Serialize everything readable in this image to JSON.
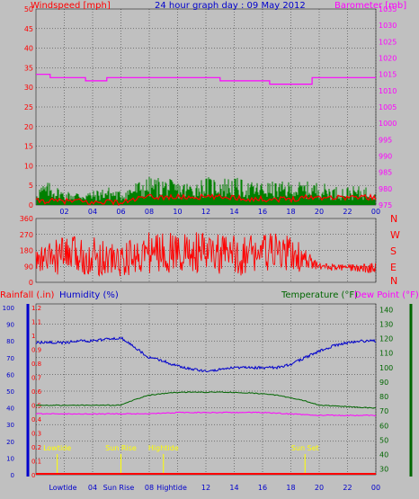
{
  "colors": {
    "bg": "#c0c0c0",
    "wind": "#ff0000",
    "gust_fill": "#008000",
    "baro": "#ff00ff",
    "humidity": "#0000cc",
    "temperature": "#006600",
    "dewpoint": "#ff00ff",
    "rain": "#ff0000",
    "event": "#ffff00",
    "axis_blue": "#0000cc",
    "axis_green": "#006600"
  },
  "chart_data": [
    {
      "type": "line",
      "title": "24 hour graph day : 09 May 2012",
      "y_left_label": "Windspeed [mph]",
      "y_right_label": "Barometer [mb]",
      "y_left_ticks": [
        "0",
        "5",
        "10",
        "15",
        "20",
        "25",
        "30",
        "35",
        "40",
        "45",
        "50"
      ],
      "y_right_ticks": [
        "975",
        "980",
        "985",
        "990",
        "995",
        "1000",
        "1005",
        "1010",
        "1015",
        "1020",
        "1025",
        "1030",
        "1035"
      ],
      "ylim_left": [
        0,
        50
      ],
      "ylim_right": [
        975,
        1035
      ],
      "x_ticks": [
        "02",
        "04",
        "06",
        "08",
        "10",
        "12",
        "14",
        "16",
        "18",
        "20",
        "22",
        "00"
      ],
      "grid": true,
      "series": [
        {
          "name": "Barometer",
          "axis": "right",
          "x": [
            0,
            1,
            1,
            3.5,
            3.5,
            5,
            5,
            10.5,
            10.5,
            13,
            13,
            16.5,
            16.5,
            19.5,
            19.5,
            24
          ],
          "values": [
            1015,
            1015,
            1014,
            1014,
            1013,
            1013,
            1014,
            1014,
            1014,
            1014,
            1013,
            1013,
            1012,
            1012,
            1014,
            1014
          ]
        },
        {
          "name": "Wind",
          "axis": "left",
          "hours": [
            0,
            1,
            2,
            3,
            4,
            5,
            6,
            7,
            8,
            9,
            10,
            11,
            12,
            13,
            14,
            15,
            16,
            17,
            18,
            19,
            20,
            21,
            22,
            23,
            24
          ],
          "avg": [
            1,
            1,
            1,
            1,
            0.5,
            1,
            0.5,
            1.5,
            2,
            2,
            2,
            2,
            2,
            2,
            2,
            1.5,
            1.5,
            1.5,
            1.5,
            2,
            2,
            2,
            2,
            2,
            2
          ],
          "gust": [
            4,
            5,
            3,
            3,
            3,
            4,
            3,
            5,
            6,
            6,
            5,
            5,
            6,
            6,
            6,
            5,
            5,
            5,
            5,
            5,
            5,
            4,
            4,
            4,
            4
          ]
        }
      ]
    },
    {
      "type": "line",
      "title": "",
      "y_left_ticks": [
        "0",
        "90",
        "180",
        "270",
        "360"
      ],
      "y_right_labels": [
        "N",
        "W",
        "S",
        "E",
        "N"
      ],
      "ylim": [
        0,
        360
      ],
      "x_ticks": [
        "02",
        "04",
        "06",
        "08",
        "10",
        "12",
        "14",
        "16",
        "18",
        "20",
        "22",
        "00"
      ],
      "series": [
        {
          "name": "Wind Direction",
          "hours": [
            0,
            2,
            4,
            6,
            8,
            10,
            12,
            14,
            16,
            18,
            20,
            22,
            24
          ],
          "center": [
            120,
            150,
            150,
            120,
            170,
            170,
            160,
            150,
            170,
            160,
            90,
            80,
            80
          ],
          "spread": [
            70,
            110,
            110,
            90,
            120,
            120,
            120,
            120,
            110,
            110,
            20,
            20,
            30
          ]
        }
      ]
    },
    {
      "type": "line",
      "title": "",
      "y_left1_label": "Rainfall (.in)",
      "y_left2_label": "Humidity (%)",
      "y_right1_label": "Temperature (°F)",
      "y_right2_label": "Dew Point (°F)",
      "y_left1_ticks": [
        "0",
        "0.1",
        "0.2",
        "0.3",
        "0.4",
        "0.5",
        "0.6",
        "0.7",
        "0.8",
        "0.9",
        "1",
        "1.1",
        "1.2"
      ],
      "y_left2_ticks": [
        "0",
        "10",
        "20",
        "30",
        "40",
        "50",
        "60",
        "70",
        "80",
        "90",
        "100"
      ],
      "y_right_ticks": [
        "30",
        "40",
        "50",
        "60",
        "70",
        "80",
        "90",
        "100",
        "110",
        "120",
        "130",
        "140"
      ],
      "ylim_rain": [
        0,
        1.2
      ],
      "ylim_humidity": [
        0,
        100
      ],
      "ylim_temp": [
        26,
        144
      ],
      "x_ticks": [
        "Lowtide",
        "04",
        "Sun Rise",
        "08",
        "Hightide",
        "12",
        "14",
        "16",
        "18",
        "20",
        "22",
        "00"
      ],
      "events": [
        {
          "label": "Lowtide",
          "hour": 1.5
        },
        {
          "label": "Sun Rise",
          "hour": 6
        },
        {
          "label": "Hightide",
          "hour": 9
        },
        {
          "label": "Sun Set",
          "hour": 19
        }
      ],
      "series": [
        {
          "name": "Humidity",
          "hours": [
            0,
            1,
            2,
            3,
            4,
            5,
            6,
            7,
            8,
            9,
            10,
            11,
            12,
            13,
            14,
            15,
            16,
            17,
            18,
            19,
            20,
            21,
            22,
            23,
            24
          ],
          "values": [
            79,
            79,
            79,
            80,
            80,
            81,
            82,
            76,
            70,
            68,
            65,
            63,
            62,
            63,
            64,
            64,
            64,
            64,
            66,
            70,
            74,
            77,
            79,
            80,
            80
          ]
        },
        {
          "name": "Temperature",
          "hours": [
            0,
            2,
            4,
            6,
            7,
            8,
            9,
            10,
            12,
            14,
            16,
            17,
            18,
            19,
            20,
            22,
            24
          ],
          "values": [
            74,
            74,
            74,
            74,
            78,
            81,
            82,
            83,
            83,
            83,
            82,
            81,
            79,
            77,
            74,
            73,
            72
          ]
        },
        {
          "name": "Dew Point",
          "hours": [
            0,
            6,
            8,
            10,
            12,
            14,
            16,
            18,
            20,
            24
          ],
          "values": [
            68,
            68,
            68,
            69,
            69,
            69,
            69,
            68,
            67,
            67
          ]
        },
        {
          "name": "Rainfall",
          "hours": [
            0,
            24
          ],
          "values": [
            0,
            0
          ]
        }
      ]
    }
  ]
}
